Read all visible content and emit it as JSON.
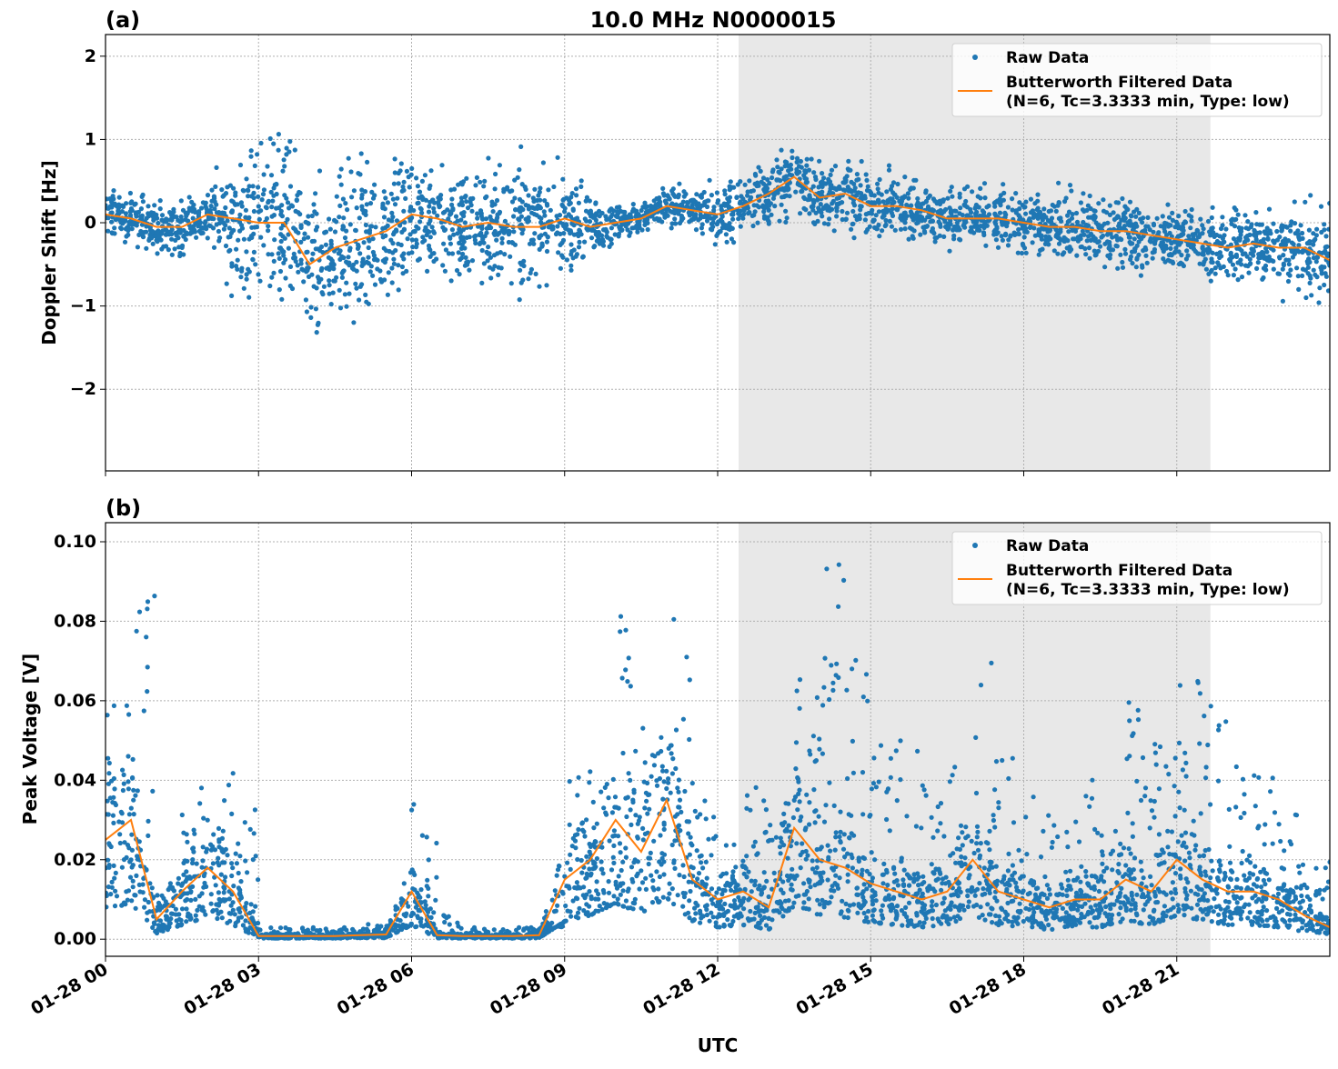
{
  "chart_data": [
    {
      "type": "scatter",
      "panel_label": "(a)",
      "title": "10.0 MHz N0000015",
      "xlabel": "",
      "ylabel": "Doppler Shift [Hz]",
      "x_unit": "hours UTC on 01-28",
      "xlim": [
        0,
        24
      ],
      "ylim": [
        -2.98,
        2.26
      ],
      "yticks": [
        -2,
        -1,
        0,
        1,
        2
      ],
      "ytick_labels": [
        "−2",
        "−1",
        "0",
        "1",
        "2"
      ],
      "grid": true,
      "legend_position": "top-right",
      "shaded_interval_hours": [
        12.41,
        21.66
      ],
      "x_half_hours": [
        0,
        0.5,
        1,
        1.5,
        2,
        2.5,
        3,
        3.5,
        4,
        4.5,
        5,
        5.5,
        6,
        6.5,
        7,
        7.5,
        8,
        8.5,
        9,
        9.5,
        10,
        10.5,
        11,
        11.5,
        12,
        12.5,
        13,
        13.5,
        14,
        14.5,
        15,
        15.5,
        16,
        16.5,
        17,
        17.5,
        18,
        18.5,
        19,
        19.5,
        20,
        20.5,
        21,
        21.5,
        22,
        22.5,
        23,
        23.5,
        24
      ],
      "series": [
        {
          "name": "Raw Data",
          "color": "#1f77b4",
          "kind": "points",
          "spread": [
            0.35,
            0.35,
            0.4,
            0.4,
            0.35,
            1.0,
            1.2,
            1.2,
            1.1,
            1.1,
            1.1,
            1.0,
            0.8,
            0.9,
            0.9,
            0.9,
            0.9,
            0.8,
            0.7,
            0.5,
            0.25,
            0.25,
            0.25,
            0.3,
            0.4,
            0.5,
            0.5,
            0.5,
            0.5,
            0.5,
            0.45,
            0.45,
            0.45,
            0.45,
            0.45,
            0.45,
            0.45,
            0.45,
            0.5,
            0.5,
            0.5,
            0.5,
            0.45,
            0.5,
            0.5,
            0.5,
            0.6,
            0.7,
            0.8
          ]
        },
        {
          "name": "Butterworth Filtered Data\n(N=6, Tc=3.3333 min, Type: low)",
          "color": "#ff7f0e",
          "kind": "line",
          "values": [
            0.1,
            0.05,
            -0.05,
            -0.05,
            0.1,
            0.05,
            0.0,
            0.0,
            -0.5,
            -0.3,
            -0.2,
            -0.1,
            0.1,
            0.05,
            -0.05,
            0.0,
            -0.05,
            -0.05,
            0.05,
            -0.05,
            0.0,
            0.05,
            0.2,
            0.15,
            0.1,
            0.2,
            0.35,
            0.55,
            0.3,
            0.35,
            0.2,
            0.2,
            0.15,
            0.05,
            0.05,
            0.05,
            0.0,
            -0.05,
            -0.05,
            -0.1,
            -0.1,
            -0.15,
            -0.2,
            -0.25,
            -0.3,
            -0.25,
            -0.3,
            -0.3,
            -0.45
          ]
        }
      ]
    },
    {
      "type": "scatter",
      "panel_label": "(b)",
      "xlabel": "UTC",
      "ylabel": "Peak Voltage [V]",
      "xlim": [
        0,
        24
      ],
      "ylim": [
        -0.0043,
        0.1048
      ],
      "yticks": [
        0.0,
        0.02,
        0.04,
        0.06,
        0.08,
        0.1
      ],
      "ytick_labels": [
        "0.00",
        "0.02",
        "0.04",
        "0.06",
        "0.08",
        "0.10"
      ],
      "xticks": [
        0,
        3,
        6,
        9,
        12,
        15,
        18,
        21
      ],
      "xtick_labels": [
        "01-28 00",
        "01-28 03",
        "01-28 06",
        "01-28 09",
        "01-28 12",
        "01-28 15",
        "01-28 18",
        "01-28 21"
      ],
      "grid": true,
      "legend_position": "top-right",
      "shaded_interval_hours": [
        12.41,
        21.66
      ],
      "x_half_hours": [
        0,
        0.5,
        1,
        1.5,
        2,
        2.5,
        3,
        3.5,
        4,
        4.5,
        5,
        5.5,
        6,
        6.5,
        7,
        7.5,
        8,
        8.5,
        9,
        9.5,
        10,
        10.5,
        11,
        11.5,
        12,
        12.5,
        13,
        13.5,
        14,
        14.5,
        15,
        15.5,
        16,
        16.5,
        17,
        17.5,
        18,
        18.5,
        19,
        19.5,
        20,
        20.5,
        21,
        21.5,
        22,
        22.5,
        23,
        23.5,
        24
      ],
      "series": [
        {
          "name": "Raw Data",
          "color": "#1f77b4",
          "kind": "points",
          "max": [
            0.06,
            0.095,
            0.012,
            0.042,
            0.043,
            0.033,
            0.003,
            0.003,
            0.003,
            0.003,
            0.004,
            0.004,
            0.035,
            0.006,
            0.003,
            0.003,
            0.003,
            0.003,
            0.043,
            0.045,
            0.088,
            0.07,
            0.1,
            0.04,
            0.024,
            0.039,
            0.035,
            0.07,
            0.096,
            0.077,
            0.054,
            0.05,
            0.04,
            0.045,
            0.07,
            0.049,
            0.038,
            0.03,
            0.041,
            0.03,
            0.062,
            0.05,
            0.066,
            0.06,
            0.05,
            0.045,
            0.039,
            0.02,
            0.01
          ]
        },
        {
          "name": "Butterworth Filtered Data\n(N=6, Tc=3.3333 min, Type: low)",
          "color": "#ff7f0e",
          "kind": "line",
          "values": [
            0.025,
            0.03,
            0.005,
            0.012,
            0.018,
            0.012,
            0.0008,
            0.0008,
            0.0008,
            0.0008,
            0.001,
            0.0012,
            0.012,
            0.001,
            0.0008,
            0.0008,
            0.0008,
            0.001,
            0.015,
            0.02,
            0.03,
            0.022,
            0.035,
            0.015,
            0.01,
            0.012,
            0.008,
            0.028,
            0.02,
            0.018,
            0.014,
            0.012,
            0.01,
            0.012,
            0.02,
            0.012,
            0.01,
            0.008,
            0.01,
            0.01,
            0.015,
            0.012,
            0.02,
            0.015,
            0.012,
            0.012,
            0.01,
            0.006,
            0.003
          ]
        }
      ]
    }
  ],
  "legend": {
    "raw_label": "Raw Data",
    "filtered_line1": "Butterworth Filtered Data",
    "filtered_line2": "(N=6, Tc=3.3333 min, Type: low)"
  }
}
